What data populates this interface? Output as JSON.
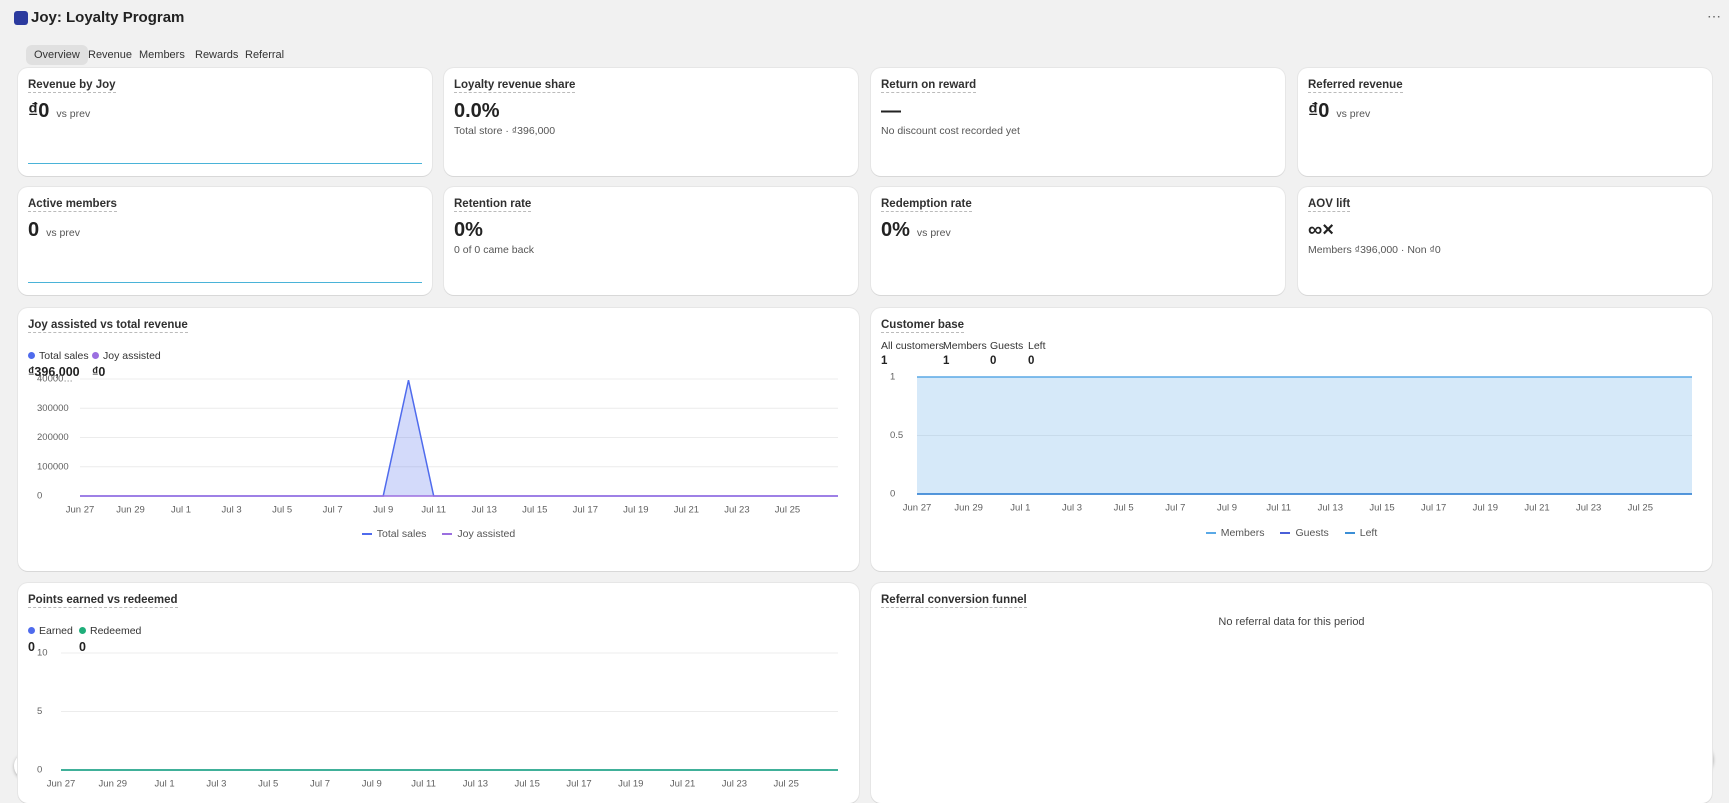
{
  "header": {
    "title": "Joy: Loyalty Program"
  },
  "tabs": [
    "Overview",
    "Revenue",
    "Members",
    "Rewards",
    "Referral"
  ],
  "kpis": [
    {
      "title": "Revenue by Joy",
      "value": "₫0",
      "suffix": "vs prev"
    },
    {
      "title": "Loyalty revenue share",
      "value": "0.0%",
      "note": "Total store · ₫396,000"
    },
    {
      "title": "Return on reward",
      "value": "—",
      "note": "No discount cost recorded yet"
    },
    {
      "title": "Referred revenue",
      "value": "₫0",
      "suffix": "vs prev"
    },
    {
      "title": "Active members",
      "value": "0",
      "suffix": "vs prev"
    },
    {
      "title": "Retention rate",
      "value": "0%",
      "note": "0 of 0 came back"
    },
    {
      "title": "Redemption rate",
      "value": "0%",
      "suffix": "vs prev"
    },
    {
      "title": "AOV lift",
      "value": "∞×",
      "note": "Members ₫396,000 · Non ₫0"
    }
  ],
  "revenue_chart": {
    "type": "area",
    "title": "Joy assisted vs total revenue",
    "categories": [
      "Jun 27",
      null,
      "Jun 29",
      null,
      "Jul 1",
      null,
      "Jul 3",
      null,
      "Jul 5",
      null,
      "Jul 7",
      null,
      "Jul 9",
      null,
      "Jul 11",
      null,
      "Jul 13",
      null,
      "Jul 15",
      null,
      "Jul 17",
      null,
      "Jul 19",
      null,
      "Jul 21",
      null,
      "Jul 23",
      null,
      "Jul 25",
      null,
      null
    ],
    "series": [
      {
        "name": "Total sales",
        "color": "#4f6bed",
        "total": "₫396,000",
        "values": [
          0,
          0,
          0,
          0,
          0,
          0,
          0,
          0,
          0,
          0,
          0,
          0,
          0,
          396000,
          0,
          0,
          0,
          0,
          0,
          0,
          0,
          0,
          0,
          0,
          0,
          0,
          0,
          0,
          0,
          0,
          0
        ]
      },
      {
        "name": "Joy assisted",
        "color": "#9b6fe0",
        "total": "₫0",
        "values": [
          0,
          0,
          0,
          0,
          0,
          0,
          0,
          0,
          0,
          0,
          0,
          0,
          0,
          0,
          0,
          0,
          0,
          0,
          0,
          0,
          0,
          0,
          0,
          0,
          0,
          0,
          0,
          0,
          0,
          0,
          0
        ]
      }
    ],
    "ylim": [
      0,
      400000
    ],
    "yticks": [
      0,
      100000,
      200000,
      300000,
      {
        "value": 400000,
        "label": "40000…"
      }
    ],
    "grid": true
  },
  "customer_chart": {
    "type": "area",
    "title": "Customer base",
    "stats": [
      {
        "label": "All customers",
        "value": 1
      },
      {
        "label": "Members",
        "value": 1
      },
      {
        "label": "Guests",
        "value": 0
      },
      {
        "label": "Left",
        "value": 0
      }
    ],
    "categories": [
      "Jun 27",
      null,
      "Jun 29",
      null,
      "Jul 1",
      null,
      "Jul 3",
      null,
      "Jul 5",
      null,
      "Jul 7",
      null,
      "Jul 9",
      null,
      "Jul 11",
      null,
      "Jul 13",
      null,
      "Jul 15",
      null,
      "Jul 17",
      null,
      "Jul 19",
      null,
      "Jul 21",
      null,
      "Jul 23",
      null,
      "Jul 25",
      null,
      null
    ],
    "series": [
      {
        "name": "Members",
        "color": "#5aa9e6",
        "values": [
          1,
          1,
          1,
          1,
          1,
          1,
          1,
          1,
          1,
          1,
          1,
          1,
          1,
          1,
          1,
          1,
          1,
          1,
          1,
          1,
          1,
          1,
          1,
          1,
          1,
          1,
          1,
          1,
          1,
          1,
          1
        ]
      },
      {
        "name": "Guests",
        "color": "#4a5fd8",
        "values": [
          0,
          0,
          0,
          0,
          0,
          0,
          0,
          0,
          0,
          0,
          0,
          0,
          0,
          0,
          0,
          0,
          0,
          0,
          0,
          0,
          0,
          0,
          0,
          0,
          0,
          0,
          0,
          0,
          0,
          0,
          0
        ]
      },
      {
        "name": "Left",
        "color": "#3b8fd6",
        "values": [
          0,
          0,
          0,
          0,
          0,
          0,
          0,
          0,
          0,
          0,
          0,
          0,
          0,
          0,
          0,
          0,
          0,
          0,
          0,
          0,
          0,
          0,
          0,
          0,
          0,
          0,
          0,
          0,
          0,
          0,
          0
        ]
      }
    ],
    "ylim": [
      0,
      1
    ],
    "yticks": [
      0,
      0.5,
      1
    ],
    "grid": true
  },
  "points_chart": {
    "type": "line",
    "title": "Points earned vs redeemed",
    "categories": [
      "Jun 27",
      null,
      "Jun 29",
      null,
      "Jul 1",
      null,
      "Jul 3",
      null,
      "Jul 5",
      null,
      "Jul 7",
      null,
      "Jul 9",
      null,
      "Jul 11",
      null,
      "Jul 13",
      null,
      "Jul 15",
      null,
      "Jul 17",
      null,
      "Jul 19",
      null,
      "Jul 21",
      null,
      "Jul 23",
      null,
      "Jul 25",
      null,
      null
    ],
    "series": [
      {
        "name": "Earned",
        "color": "#4f6bed",
        "total": 0,
        "values": [
          0,
          0,
          0,
          0,
          0,
          0,
          0,
          0,
          0,
          0,
          0,
          0,
          0,
          0,
          0,
          0,
          0,
          0,
          0,
          0,
          0,
          0,
          0,
          0,
          0,
          0,
          0,
          0,
          0,
          0,
          0
        ]
      },
      {
        "name": "Redeemed",
        "color": "#1fae7a",
        "total": 0,
        "values": [
          0,
          0,
          0,
          0,
          0,
          0,
          0,
          0,
          0,
          0,
          0,
          0,
          0,
          0,
          0,
          0,
          0,
          0,
          0,
          0,
          0,
          0,
          0,
          0,
          0,
          0,
          0,
          0,
          0,
          0,
          0
        ]
      }
    ],
    "ylim": [
      0,
      10
    ],
    "yticks": [
      0,
      5,
      10
    ],
    "grid": true
  },
  "referral": {
    "title": "Referral conversion funnel",
    "message": "No referral data for this period"
  }
}
